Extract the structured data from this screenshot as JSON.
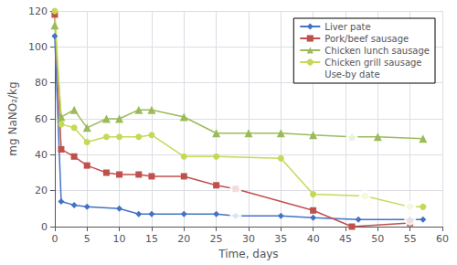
{
  "chart_data": {
    "type": "line",
    "xlabel": "Time, days",
    "ylabel": "mg NaNO₂/kg",
    "xlim": [
      0,
      60
    ],
    "ylim": [
      0,
      120
    ],
    "xticks": [
      0,
      5,
      10,
      15,
      20,
      25,
      30,
      35,
      40,
      45,
      50,
      55,
      60
    ],
    "yticks": [
      0,
      20,
      40,
      60,
      80,
      100,
      120
    ],
    "grid": true,
    "legend": "upper right",
    "series": [
      {
        "name": "Liver pate",
        "color": "#4472c4",
        "marker": "diamond",
        "x": [
          0,
          1,
          3,
          5,
          10,
          13,
          15,
          20,
          25,
          28,
          35,
          40,
          47,
          55,
          57
        ],
        "values": [
          106,
          14,
          12,
          11,
          10,
          7,
          7,
          7,
          7,
          6,
          6,
          5,
          4,
          4,
          4
        ]
      },
      {
        "name": "Pork/beef sausage",
        "color": "#c0504d",
        "marker": "square",
        "x": [
          0,
          1,
          3,
          5,
          8,
          10,
          13,
          15,
          20,
          25,
          28,
          40,
          46,
          55
        ],
        "values": [
          118,
          43,
          39,
          34,
          30,
          29,
          29,
          28,
          28,
          23,
          21,
          9,
          0,
          2
        ]
      },
      {
        "name": "Chicken lunch sausage",
        "color": "#9bbb59",
        "marker": "triangle",
        "x": [
          0,
          1,
          3,
          5,
          8,
          10,
          13,
          15,
          20,
          25,
          30,
          35,
          40,
          46,
          50,
          57
        ],
        "values": [
          112,
          61,
          65,
          55,
          60,
          60,
          65,
          65,
          61,
          52,
          52,
          52,
          51,
          50,
          50,
          49
        ]
      },
      {
        "name": "Chicken grill sausage",
        "color": "#c6d956",
        "marker": "circle",
        "x": [
          0,
          1,
          3,
          5,
          8,
          10,
          13,
          15,
          20,
          25,
          35,
          40,
          48,
          55,
          57
        ],
        "values": [
          120,
          57,
          55,
          47,
          50,
          50,
          50,
          51,
          39,
          39,
          38,
          18,
          17,
          11,
          11
        ]
      },
      {
        "name": "Use-by date",
        "type": "scatter",
        "color": "#000000",
        "marker": "open circle",
        "x": [
          28,
          55,
          28,
          46,
          48,
          55
        ],
        "values": [
          6,
          4,
          21,
          50,
          17,
          11
        ]
      }
    ]
  }
}
